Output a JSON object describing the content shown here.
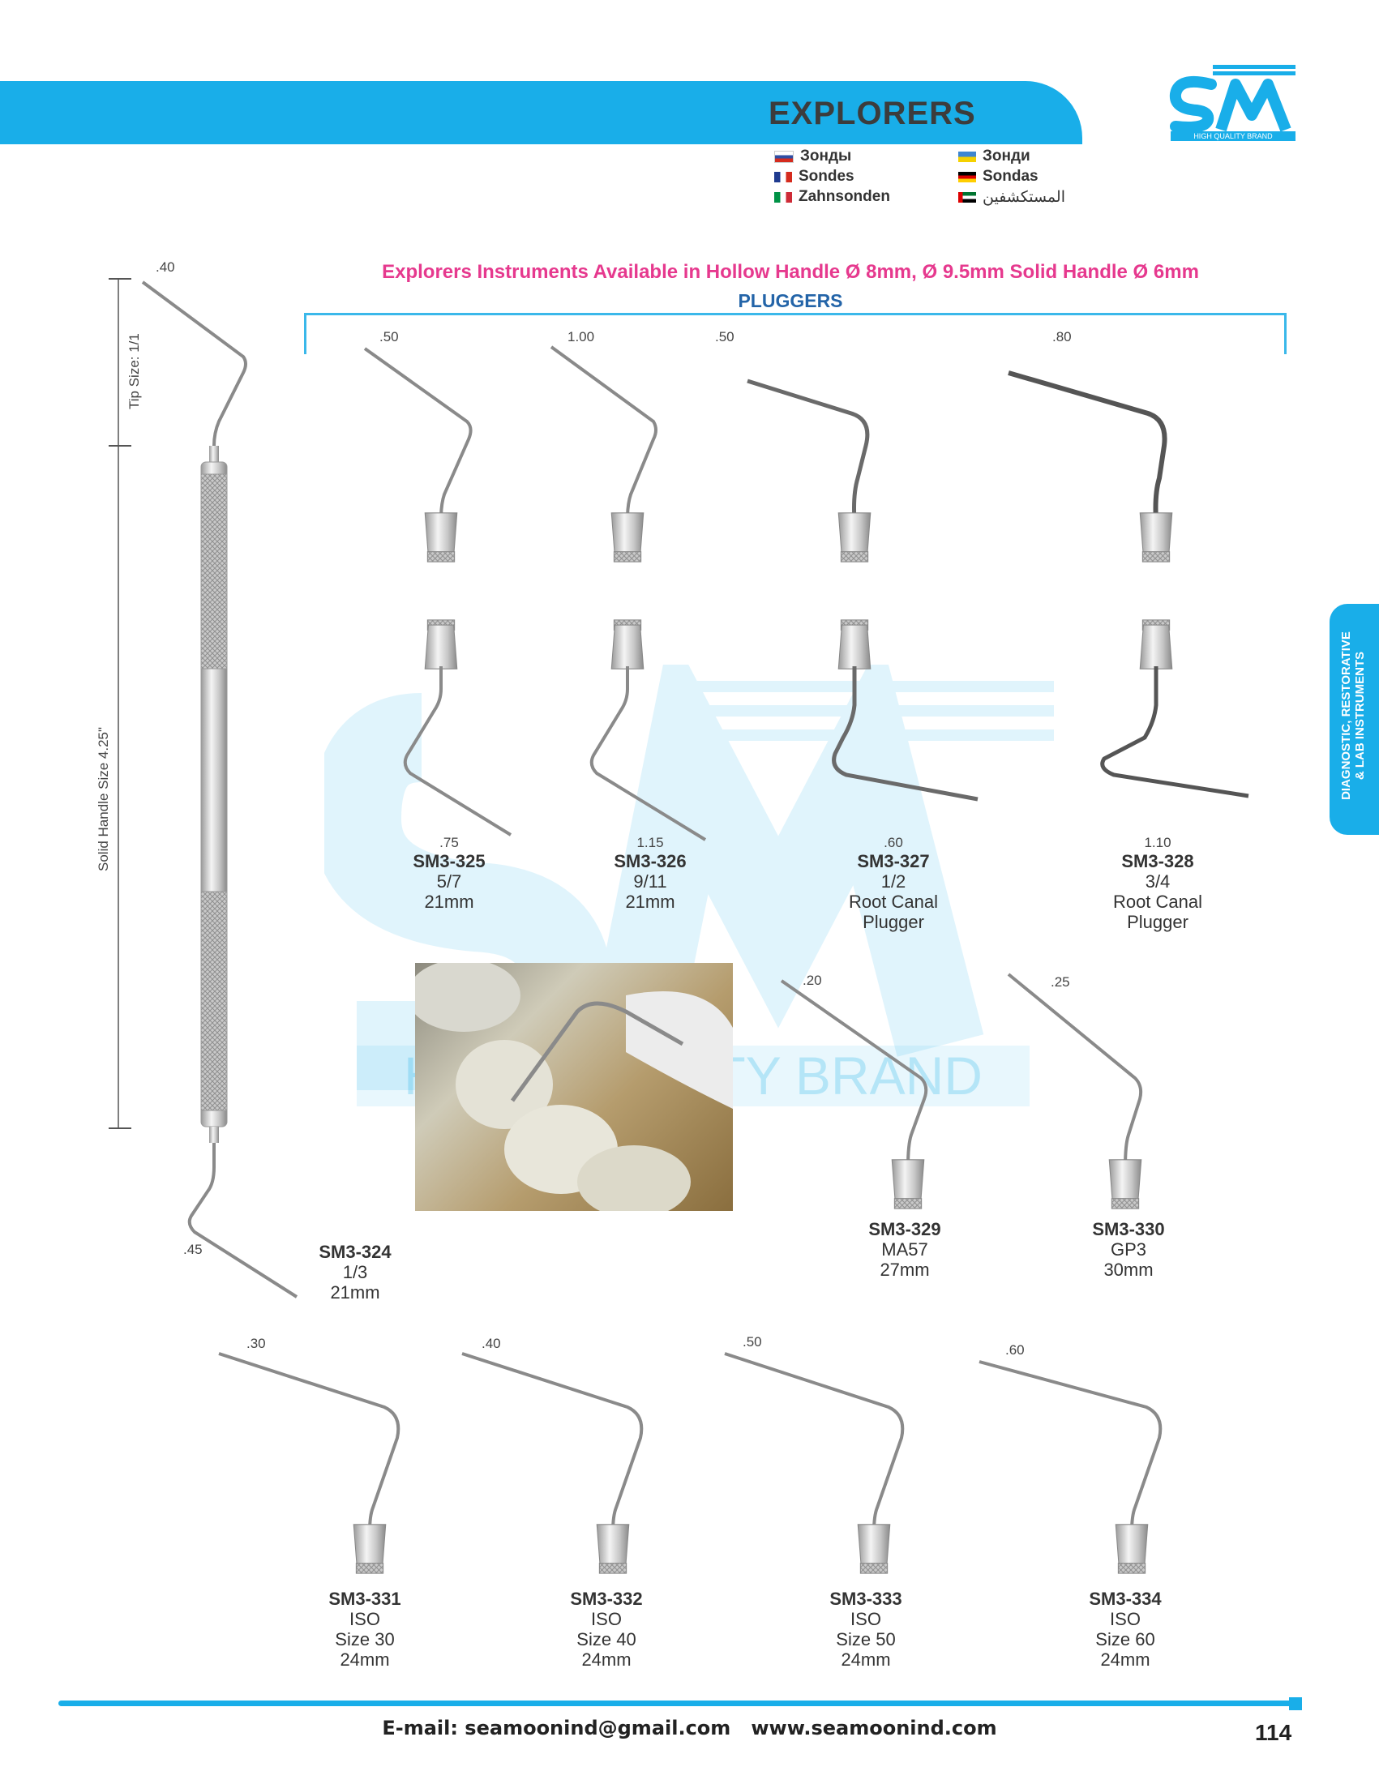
{
  "header": {
    "title": "EXPLORERS",
    "logo_text": "SM",
    "logo_tagline": "HIGH QUALITY BRAND",
    "languages": [
      {
        "label": "Зонды",
        "flag": "ru"
      },
      {
        "label": "Зонди",
        "flag": "ua"
      },
      {
        "label": "Sondes",
        "flag": "fr"
      },
      {
        "label": "Sondas",
        "flag": "es"
      },
      {
        "label": "Zahnsonden",
        "flag": "it"
      },
      {
        "label": "المستكشفين",
        "flag": "ae"
      }
    ]
  },
  "subtitle": "Explorers Instruments Available in Hollow Handle Ø 8mm, Ø 9.5mm Solid Handle Ø 6mm",
  "section_label": "PLUGGERS",
  "main_instrument": {
    "code": "SM3-324",
    "lines": [
      "1/3",
      "21mm"
    ],
    "tip_top": ".40",
    "tip_bottom": ".45",
    "tip_size_label": "Tip Size: 1/1",
    "handle_label": "Solid Handle Size 4.25\""
  },
  "pluggers": [
    {
      "code": "SM3-325",
      "lines": [
        "5/7",
        "21mm"
      ],
      "top_tip": ".50",
      "bottom_tip": ".75"
    },
    {
      "code": "SM3-326",
      "lines": [
        "9/11",
        "21mm"
      ],
      "top_tip": "1.00",
      "bottom_tip": "1.15"
    },
    {
      "code": "SM3-327",
      "lines": [
        "1/2",
        "Root Canal",
        "Plugger"
      ],
      "top_tip": ".50",
      "bottom_tip": ".60"
    },
    {
      "code": "SM3-328",
      "lines": [
        "3/4",
        "Root Canal",
        "Plugger"
      ],
      "top_tip": ".80",
      "bottom_tip": "1.10"
    }
  ],
  "middle_items": [
    {
      "code": "SM3-329",
      "lines": [
        "MA57",
        "27mm"
      ],
      "tip": ".20"
    },
    {
      "code": "SM3-330",
      "lines": [
        "GP3",
        "30mm"
      ],
      "tip": ".25"
    }
  ],
  "iso_items": [
    {
      "code": "SM3-331",
      "lines": [
        "ISO",
        "Size 30",
        "24mm"
      ],
      "tip": ".30"
    },
    {
      "code": "SM3-332",
      "lines": [
        "ISO",
        "Size 40",
        "24mm"
      ],
      "tip": ".40"
    },
    {
      "code": "SM3-333",
      "lines": [
        "ISO",
        "Size 50",
        "24mm"
      ],
      "tip": ".50"
    },
    {
      "code": "SM3-334",
      "lines": [
        "ISO",
        "Size 60",
        "24mm"
      ],
      "tip": ".60"
    }
  ],
  "side_tab": {
    "line1": "DIAGNOSTIC, RESTORATIVE",
    "line2": "& LAB INSTRUMENTS"
  },
  "watermark_text": "HIGH QUALITY BRAND",
  "footer": {
    "contact": "E-mail: seamoonind@gmail.com   www.seamoonind.com",
    "page_number": "114"
  }
}
